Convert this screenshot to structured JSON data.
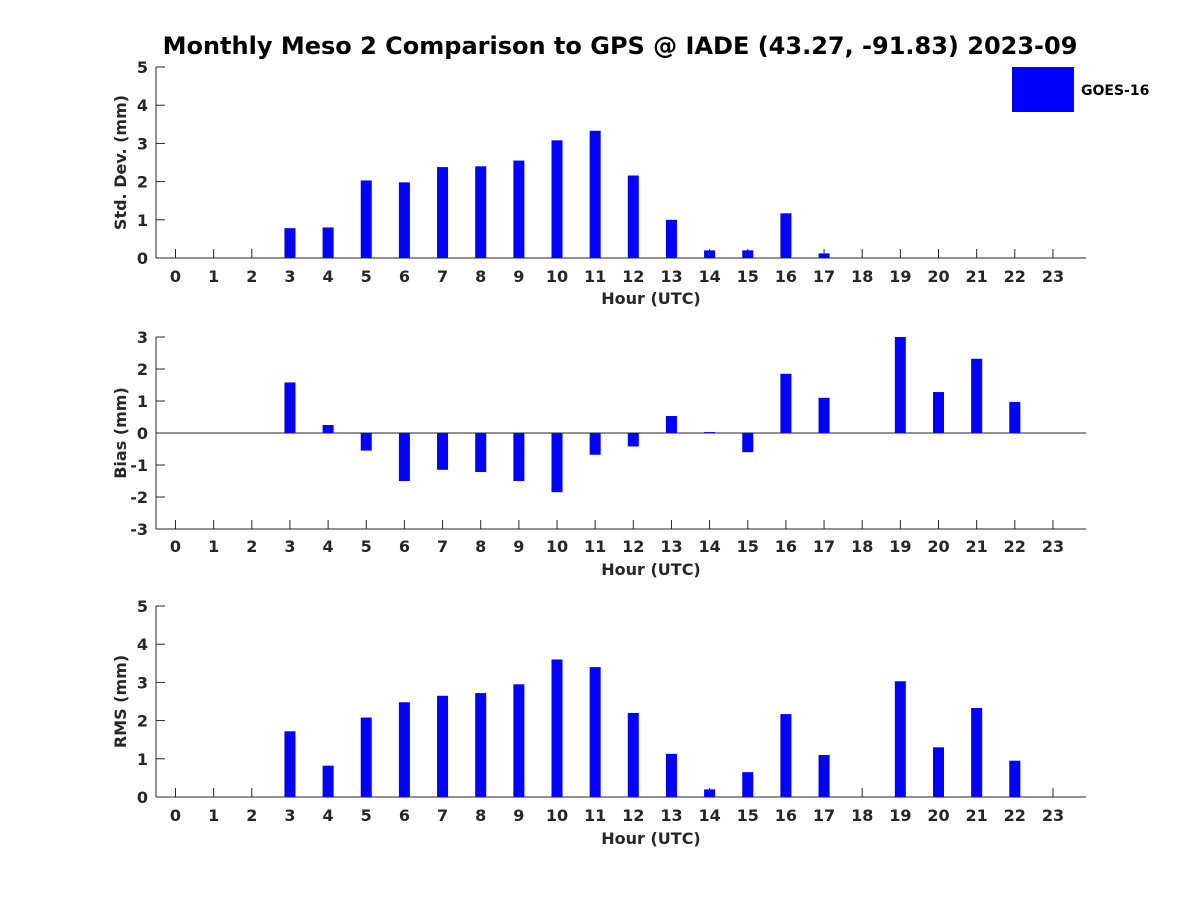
{
  "title": "Monthly Meso 2 Comparison to GPS @ IADE (43.27, -91.83) 2023-09",
  "legend": {
    "label": "GOES-16",
    "color": "#0000ff",
    "position": "top-right"
  },
  "chart_data": [
    {
      "type": "bar",
      "ylabel": "Std. Dev. (mm)",
      "xlabel": "Hour (UTC)",
      "ylim": [
        0,
        5
      ],
      "yticks": [
        0,
        1,
        2,
        3,
        4,
        5
      ],
      "categories": [
        "0",
        "1",
        "2",
        "3",
        "4",
        "5",
        "6",
        "7",
        "8",
        "9",
        "10",
        "11",
        "12",
        "13",
        "14",
        "15",
        "16",
        "17",
        "18",
        "19",
        "20",
        "21",
        "22",
        "23"
      ],
      "series": [
        {
          "name": "GOES-16",
          "color": "#0000ff",
          "values": [
            0,
            0,
            0,
            0.78,
            0.8,
            2.03,
            1.98,
            2.38,
            2.4,
            2.55,
            3.08,
            3.33,
            2.16,
            1.0,
            0.2,
            0.2,
            1.17,
            0.12,
            0,
            0,
            0,
            0,
            0,
            0
          ]
        }
      ]
    },
    {
      "type": "bar",
      "ylabel": "Bias (mm)",
      "xlabel": "Hour (UTC)",
      "ylim": [
        -3,
        3
      ],
      "yticks": [
        -3,
        -2,
        -1,
        0,
        1,
        2,
        3
      ],
      "zero_line": true,
      "categories": [
        "0",
        "1",
        "2",
        "3",
        "4",
        "5",
        "6",
        "7",
        "8",
        "9",
        "10",
        "11",
        "12",
        "13",
        "14",
        "15",
        "16",
        "17",
        "18",
        "19",
        "20",
        "21",
        "22",
        "23"
      ],
      "series": [
        {
          "name": "GOES-16",
          "color": "#0000ff",
          "values": [
            0,
            0,
            0,
            1.58,
            0.25,
            -0.55,
            -1.5,
            -1.15,
            -1.22,
            -1.5,
            -1.85,
            -0.68,
            -0.42,
            0.53,
            0.03,
            -0.6,
            1.85,
            1.1,
            0,
            3.0,
            1.28,
            2.32,
            0.97,
            0
          ]
        }
      ]
    },
    {
      "type": "bar",
      "ylabel": "RMS (mm)",
      "xlabel": "Hour (UTC)",
      "ylim": [
        0,
        5
      ],
      "yticks": [
        0,
        1,
        2,
        3,
        4,
        5
      ],
      "categories": [
        "0",
        "1",
        "2",
        "3",
        "4",
        "5",
        "6",
        "7",
        "8",
        "9",
        "10",
        "11",
        "12",
        "13",
        "14",
        "15",
        "16",
        "17",
        "18",
        "19",
        "20",
        "21",
        "22",
        "23"
      ],
      "series": [
        {
          "name": "GOES-16",
          "color": "#0000ff",
          "values": [
            0,
            0,
            0,
            1.72,
            0.82,
            2.08,
            2.48,
            2.65,
            2.72,
            2.95,
            3.6,
            3.4,
            2.2,
            1.13,
            0.2,
            0.65,
            2.17,
            1.1,
            0,
            3.03,
            1.3,
            2.33,
            0.95,
            0
          ]
        }
      ]
    }
  ]
}
